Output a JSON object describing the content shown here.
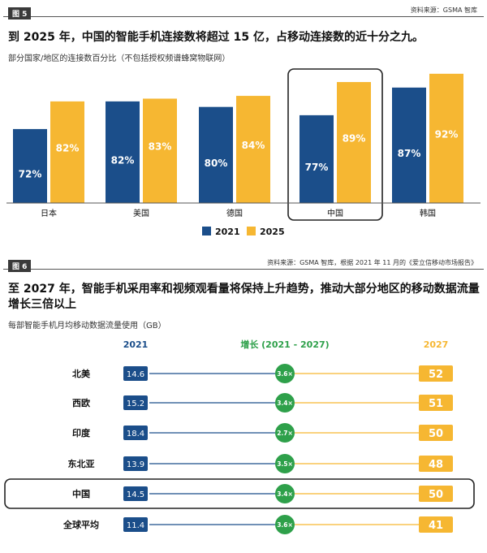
{
  "colors": {
    "y2021": "#1b4e8a",
    "y2025": "#f6b732",
    "growth": "#2ea04a",
    "y2027": "#f6b732",
    "dark": "#222222"
  },
  "figure5": {
    "tag": "图 5",
    "source": "资料来源：GSMA 智库",
    "title": "到 2025 年，中国的智能手机连接数将超过 15 亿，占移动连接数的近十分之九。",
    "subtitle": "部分国家/地区的连接数百分比（不包括授权频谱蜂窝物联网）",
    "chart_data": {
      "type": "bar",
      "categories": [
        "日本",
        "美国",
        "德国",
        "中国",
        "韩国"
      ],
      "series": [
        {
          "name": "2021",
          "values": [
            72,
            82,
            80,
            77,
            87
          ],
          "labels": [
            "72%",
            "82%",
            "80%",
            "77%",
            "87%"
          ]
        },
        {
          "name": "2025",
          "values": [
            82,
            83,
            84,
            89,
            92
          ],
          "labels": [
            "82%",
            "83%",
            "84%",
            "89%",
            "92%"
          ]
        }
      ],
      "highlight": "中国",
      "legend": [
        "2021",
        "2025"
      ],
      "legend_position": "bottom-center",
      "ylim": [
        0,
        100
      ],
      "grid": false
    }
  },
  "figure6": {
    "tag": "图 6",
    "source": "资料来源：GSMA 智库，根据 2021 年 11 月的《爱立信移动市场报告》",
    "title_lines": [
      "至 2027 年，智能手机采用率和视频观看量将保持上升趋势，推动大部分地区的移动数据流量",
      "增长三倍以上"
    ],
    "subtitle": "每部智能手机月均移动数据流量使用（GB）",
    "chart_data": {
      "type": "table",
      "headers": {
        "start": "2021",
        "growth": "增长 (2021 - 2027)",
        "end": "2027"
      },
      "rows": [
        {
          "region": "北美",
          "v2021": "14.6",
          "growth": "3.6×",
          "v2027": "52"
        },
        {
          "region": "西欧",
          "v2021": "15.2",
          "growth": "3.4×",
          "v2027": "51"
        },
        {
          "region": "印度",
          "v2021": "18.4",
          "growth": "2.7×",
          "v2027": "50"
        },
        {
          "region": "东北亚",
          "v2021": "13.9",
          "growth": "3.5×",
          "v2027": "48"
        },
        {
          "region": "中国",
          "v2021": "14.5",
          "growth": "3.4×",
          "v2027": "50"
        },
        {
          "region": "全球平均",
          "v2021": "11.4",
          "growth": "3.6×",
          "v2027": "41"
        }
      ],
      "highlight": "中国"
    }
  }
}
